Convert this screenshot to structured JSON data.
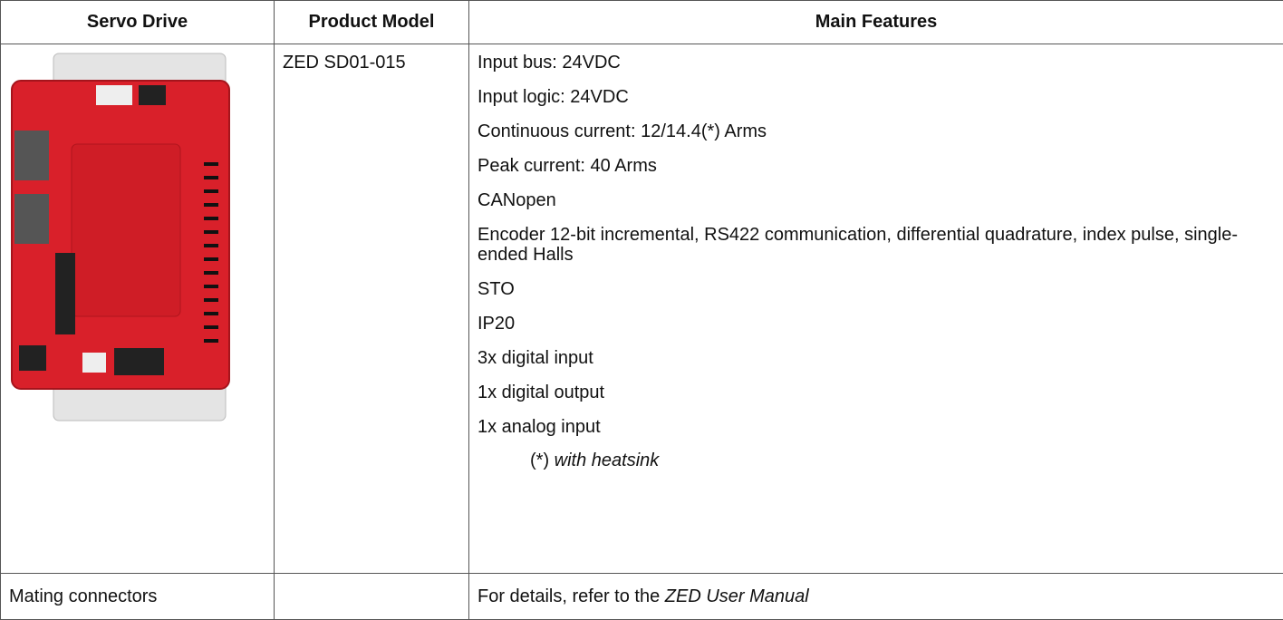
{
  "table": {
    "headers": [
      "Servo Drive",
      "Product Model",
      "Main Features"
    ],
    "rows": [
      {
        "model": "ZED SD01-015",
        "features": [
          "Input bus: 24VDC",
          "Input logic: 24VDC",
          "Continuous current: 12/14.4(*) Arms",
          "Peak current: 40 Arms",
          "CANopen",
          "Encoder 12-bit incremental, RS422 communication, differential quadrature, index pulse, single-ended Halls",
          "STO",
          "IP20",
          "3x digital input",
          "1x digital output",
          "1x analog input"
        ],
        "note": {
          "marker": "(*)",
          "text": "with heatsink"
        }
      },
      {
        "label": "Mating connectors",
        "details": {
          "text": "For details, refer to the",
          "reference": "ZED User Manual"
        }
      }
    ]
  }
}
